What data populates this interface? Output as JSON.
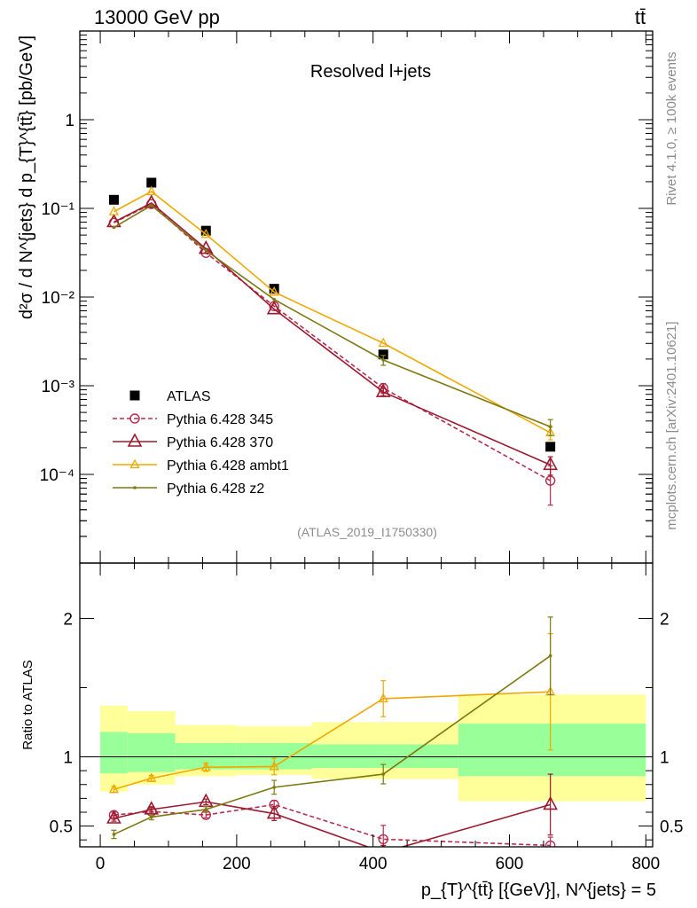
{
  "header": {
    "left": "13000 GeV pp",
    "right": "tt̄"
  },
  "side_labels": {
    "top": "Rivet 4.1.0, ≥ 100k events",
    "bottom": "mcplots.cern.ch [arXiv:2401.10621]"
  },
  "chart_data": [
    {
      "type": "scatter",
      "panel": "main",
      "title": "Resolved l+jets",
      "analysis_tag": "(ATLAS_2019_I1750330)",
      "ylabel": "d²σ / d N^{jets} d p_{T}^{tt̄} [pb/GeV]",
      "yscale": "log",
      "ylim": [
        1e-05,
        10
      ],
      "xlim": [
        -30,
        810
      ],
      "ytick_labels": [
        "10⁻⁴",
        "10⁻³",
        "10⁻²",
        "10⁻¹",
        "1"
      ],
      "legend_position": "bottom-left",
      "x": [
        20,
        75,
        155,
        255,
        415,
        660
      ],
      "series": [
        {
          "name": "ATLAS",
          "style": "data",
          "color": "#000000",
          "values": [
            0.125,
            0.195,
            0.056,
            0.0124,
            0.00225,
            0.000205
          ]
        },
        {
          "name": "Pythia 6.428 345",
          "style": "dashed-circle",
          "color": "#b52d4f",
          "values": [
            0.069,
            0.112,
            0.0315,
            0.0079,
            0.00094,
            8.5e-05
          ],
          "errors": [
            0,
            0,
            0,
            0,
            0.00012,
            4e-05
          ]
        },
        {
          "name": "Pythia 6.428 370",
          "style": "solid-triangle",
          "color": "#9c1a2e",
          "values": [
            0.07,
            0.115,
            0.035,
            0.0073,
            0.00085,
            0.000128
          ],
          "errors": [
            0,
            0,
            0,
            0,
            8e-05,
            3e-05
          ]
        },
        {
          "name": "Pythia 6.428 ambt1",
          "style": "solid-small-triangle",
          "color": "#f0a800",
          "values": [
            0.092,
            0.155,
            0.051,
            0.0114,
            0.00302,
            0.000295
          ],
          "errors": [
            0,
            0,
            0,
            0,
            0,
            5e-05
          ]
        },
        {
          "name": "Pythia 6.428 z2",
          "style": "solid-dot",
          "color": "#7d7a12",
          "values": [
            0.061,
            0.108,
            0.0335,
            0.0094,
            0.00195,
            0.000345
          ],
          "errors": [
            0,
            0,
            0,
            0,
            0.00025,
            7e-05
          ]
        }
      ]
    },
    {
      "type": "line",
      "panel": "ratio",
      "ylabel": "Ratio to ATLAS",
      "xlabel": "p_{T}^{tt̄} [{GeV}], N^{jets} = 5",
      "ylim": [
        0.35,
        2.4
      ],
      "xlim": [
        -30,
        810
      ],
      "xticks": [
        0,
        200,
        400,
        600,
        800
      ],
      "ytick_labels": [
        "0.5",
        "1",
        "2"
      ],
      "bins": [
        [
          0,
          40
        ],
        [
          40,
          110
        ],
        [
          110,
          200
        ],
        [
          200,
          310
        ],
        [
          310,
          525
        ],
        [
          525,
          800
        ]
      ],
      "band_inner": [
        [
          0.88,
          1.18
        ],
        [
          0.89,
          1.17
        ],
        [
          0.91,
          1.1
        ],
        [
          0.91,
          1.1
        ],
        [
          0.92,
          1.09
        ],
        [
          0.86,
          1.24
        ]
      ],
      "band_outer": [
        [
          0.75,
          1.37
        ],
        [
          0.8,
          1.33
        ],
        [
          0.86,
          1.23
        ],
        [
          0.87,
          1.22
        ],
        [
          0.84,
          1.25
        ],
        [
          0.68,
          1.45
        ]
      ],
      "x": [
        20,
        75,
        155,
        255,
        415,
        660
      ],
      "series": [
        {
          "name": "Pythia 6.428 345",
          "values": [
            0.58,
            0.605,
            0.58,
            0.655,
            0.405,
            0.36
          ],
          "errors": [
            0.02,
            0.02,
            0.02,
            0.03,
            0.1,
            0.06
          ]
        },
        {
          "name": "Pythia 6.428 370",
          "values": [
            0.555,
            0.62,
            0.675,
            0.59,
            0.31,
            0.655
          ],
          "errors": [
            0.02,
            0.02,
            0.02,
            0.05,
            0.05,
            0.22
          ]
        },
        {
          "name": "Pythia 6.428 ambt1",
          "values": [
            0.765,
            0.845,
            0.925,
            0.93,
            1.42,
            1.47
          ],
          "errors": [
            0.02,
            0.02,
            0.03,
            0.06,
            0.13,
            0.42
          ]
        },
        {
          "name": "Pythia 6.428 z2",
          "values": [
            0.44,
            0.565,
            0.62,
            0.78,
            0.875,
            1.73
          ],
          "errors": [
            0.03,
            0.02,
            0.02,
            0.05,
            0.07,
            0.28
          ]
        }
      ]
    }
  ]
}
